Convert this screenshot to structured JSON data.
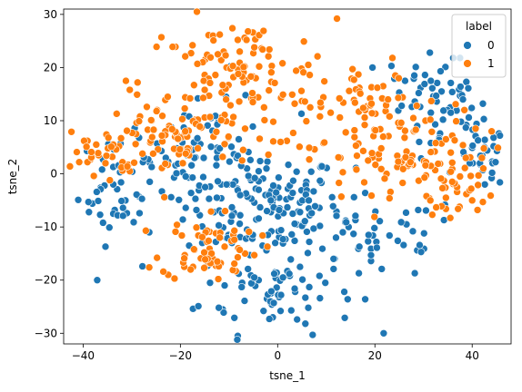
{
  "chart_data": {
    "type": "scatter",
    "xlabel": "tsne_1",
    "ylabel": "tsne_2",
    "xlim": [
      -44,
      48
    ],
    "ylim": [
      -32,
      31
    ],
    "xticks": [
      -40,
      -20,
      0,
      20,
      40
    ],
    "yticks": [
      -30,
      -20,
      -10,
      0,
      10,
      20,
      30
    ],
    "legend": {
      "title": "label",
      "position": "top-right"
    },
    "series": [
      {
        "name": "0",
        "color": "#1f77b4",
        "points": []
      },
      {
        "name": "1",
        "color": "#ff7f0e",
        "points": []
      }
    ]
  }
}
